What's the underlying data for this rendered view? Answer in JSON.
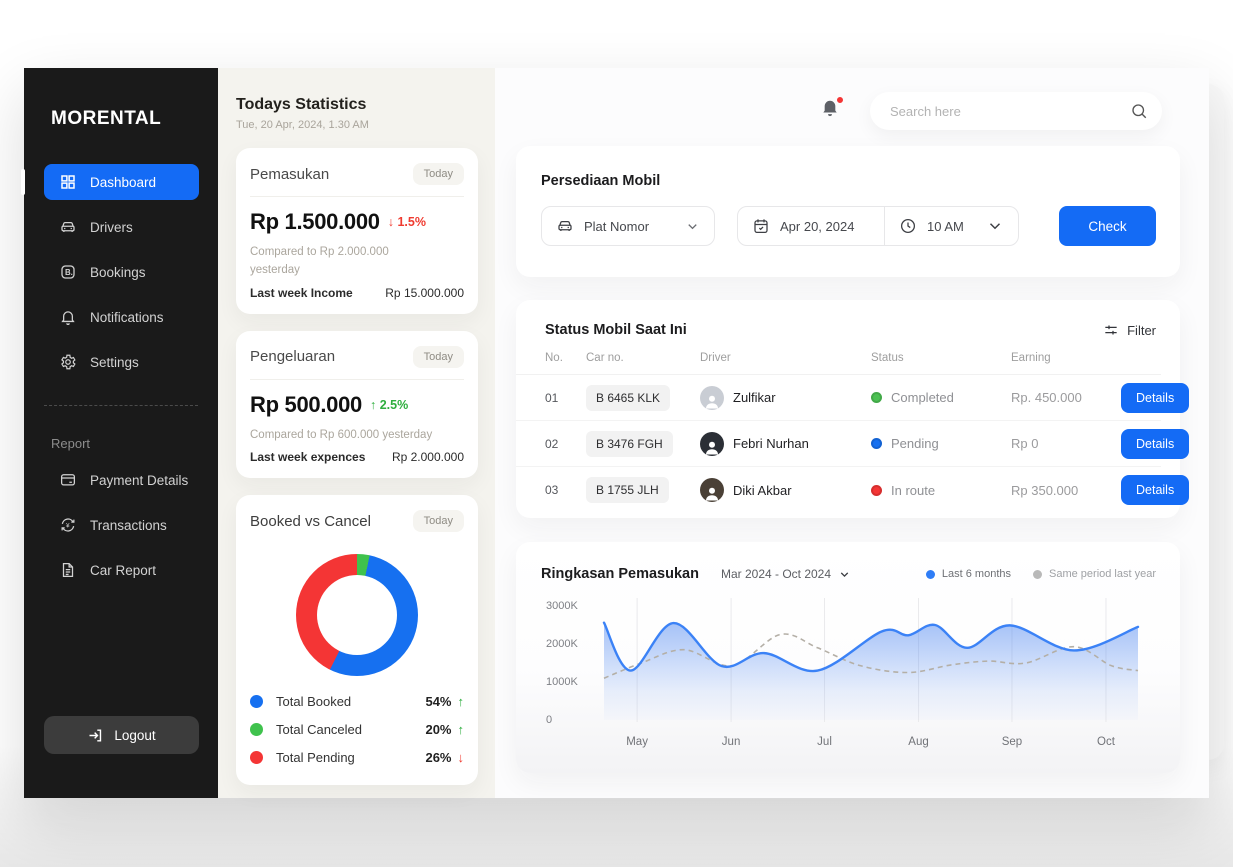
{
  "colors": {
    "accent_blue": "#146bf5",
    "status_green": "#4cc153",
    "status_blue": "#1670f0",
    "status_red": "#f43535",
    "chart_line_blue": "#3b82f6",
    "chart_dashed_gray": "#b4afa6",
    "sidebar_bg": "#1a1a1a",
    "mid_bg": "#f4f3ee"
  },
  "sidebar": {
    "brand": "MORENTAL",
    "items": [
      {
        "label": "Dashboard",
        "icon": "grid-icon",
        "active": true
      },
      {
        "label": "Drivers",
        "icon": "car-icon",
        "active": false
      },
      {
        "label": "Bookings",
        "icon": "booking-icon",
        "active": false
      },
      {
        "label": "Notifications",
        "icon": "bell-icon",
        "active": false
      },
      {
        "label": "Settings",
        "icon": "gear-icon",
        "active": false
      }
    ],
    "section_label": "Report",
    "report_items": [
      {
        "label": "Payment Details",
        "icon": "credit-card-icon"
      },
      {
        "label": "Transactions",
        "icon": "transactions-icon"
      },
      {
        "label": "Car Report",
        "icon": "document-icon"
      }
    ],
    "logout_label": "Logout"
  },
  "topbar": {
    "search_placeholder": "Search here"
  },
  "stats": {
    "title": "Todays Statistics",
    "subtitle": "Tue, 20 Apr, 2024, 1.30 AM",
    "income": {
      "title": "Pemasukan",
      "badge": "Today",
      "amount": "Rp 1.500.000",
      "delta": "↓ 1.5%",
      "trend": "down",
      "compare": "Compared to Rp 2.000.000 yesterday",
      "footer_label": "Last week Income",
      "footer_value": "Rp 15.000.000"
    },
    "expense": {
      "title": "Pengeluaran",
      "badge": "Today",
      "amount": "Rp 500.000",
      "delta": "↑ 2.5%",
      "trend": "up",
      "compare": "Compared to Rp 600.000 yesterday",
      "footer_label": "Last week expences",
      "footer_value": "Rp 2.000.000"
    },
    "donut": {
      "title": "Booked vs Cancel",
      "badge": "Today",
      "start_angle_deg": -60,
      "draw_order": [
        1,
        0,
        2
      ],
      "legend": [
        {
          "label": "Total Booked",
          "value": "54%",
          "trend": "↑",
          "trend_dir": "up",
          "color": "#1670f0"
        },
        {
          "label": "Total Canceled",
          "value": "20%",
          "trend": "↑",
          "trend_dir": "up",
          "color": "#3fc24d"
        },
        {
          "label": "Total Pending",
          "value": "26%",
          "trend": "↓",
          "trend_dir": "down",
          "color": "#f43535"
        }
      ]
    }
  },
  "availability": {
    "title": "Persediaan Mobil",
    "plate_label": "Plat Nomor",
    "date_value": "Apr 20, 2024",
    "time_value": "10 AM",
    "check_label": "Check"
  },
  "status_table": {
    "title": "Status Mobil Saat Ini",
    "filter_label": "Filter",
    "columns": [
      "No.",
      "Car no.",
      "Driver",
      "Status",
      "Earning"
    ],
    "rows": [
      {
        "no": "01",
        "car": "B 6465 KLK",
        "driver": "Zulfikar",
        "status": "Completed",
        "status_color": "#4cc153",
        "earning": "Rp. 450.000",
        "action": "Details",
        "avatar_color": "#c9cdd4"
      },
      {
        "no": "02",
        "car": "B 3476 FGH",
        "driver": "Febri Nurhan",
        "status": "Pending",
        "status_color": "#1670f0",
        "earning": "Rp 0",
        "action": "Details",
        "avatar_color": "#2b2f36"
      },
      {
        "no": "03",
        "car": "B 1755 JLH",
        "driver": "Diki Akbar",
        "status": "In route",
        "status_color": "#f43535",
        "earning": "Rp 350.000",
        "action": "Details",
        "avatar_color": "#4a4036"
      }
    ]
  },
  "chart_data": {
    "type": "area",
    "title": "Ringkasan Pemasukan",
    "period": "Mar 2024 - Oct 2024",
    "legend": [
      {
        "label": "Last 6 months",
        "color": "#2f7df6"
      },
      {
        "label": "Same period last year",
        "color": "#b9b9b9"
      }
    ],
    "x_tick_labels": [
      "May",
      "Jun",
      "Jul",
      "Aug",
      "Sep",
      "Oct"
    ],
    "x_gridlines_pct": [
      6.2,
      23.8,
      41.3,
      58.9,
      76.4,
      94.0
    ],
    "y_tick_labels": [
      "3000K",
      "2000K",
      "1000K",
      "0"
    ],
    "y_tick_values": [
      3000,
      2000,
      1000,
      0
    ],
    "ylim": [
      0,
      3000
    ],
    "grid": "vertical-only",
    "legend_position": "top-right",
    "series": [
      {
        "name": "Last 6 months",
        "style": "solid-area",
        "color": "#3b82f6",
        "points": [
          [
            0,
            2560
          ],
          [
            5,
            1300
          ],
          [
            13,
            2550
          ],
          [
            22,
            1420
          ],
          [
            30,
            1760
          ],
          [
            40,
            1300
          ],
          [
            52,
            2330
          ],
          [
            57,
            2230
          ],
          [
            62,
            2500
          ],
          [
            68,
            1900
          ],
          [
            76,
            2490
          ],
          [
            88,
            1830
          ],
          [
            100,
            2450
          ]
        ]
      },
      {
        "name": "Same period last year",
        "style": "dashed",
        "color": "#b4afa6",
        "points": [
          [
            0,
            1100
          ],
          [
            7,
            1500
          ],
          [
            15,
            1850
          ],
          [
            24,
            1430
          ],
          [
            33,
            2250
          ],
          [
            40,
            1900
          ],
          [
            48,
            1430
          ],
          [
            57,
            1250
          ],
          [
            65,
            1450
          ],
          [
            72,
            1550
          ],
          [
            79,
            1500
          ],
          [
            88,
            1930
          ],
          [
            95,
            1430
          ],
          [
            100,
            1300
          ]
        ]
      }
    ]
  }
}
